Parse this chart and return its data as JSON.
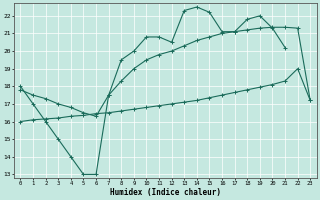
{
  "xlabel": "Humidex (Indice chaleur)",
  "bg_color": "#c5e8e0",
  "line_color": "#1a6b5a",
  "grid_color": "#ffffff",
  "xlim": [
    -0.5,
    23.5
  ],
  "ylim": [
    12.8,
    22.7
  ],
  "xticks": [
    0,
    1,
    2,
    3,
    4,
    5,
    6,
    7,
    8,
    9,
    10,
    11,
    12,
    13,
    14,
    15,
    16,
    17,
    18,
    19,
    20,
    21,
    22,
    23
  ],
  "yticks": [
    13,
    14,
    15,
    16,
    17,
    18,
    19,
    20,
    21,
    22
  ],
  "curve1_x": [
    0,
    1,
    2,
    3,
    4,
    5,
    6,
    7,
    8,
    9,
    10,
    11,
    12,
    13,
    14,
    15,
    16,
    17,
    18,
    19,
    20,
    21
  ],
  "curve1_y": [
    18.0,
    17.0,
    16.0,
    15.0,
    14.0,
    13.0,
    13.0,
    17.5,
    19.5,
    20.0,
    20.8,
    20.8,
    20.5,
    22.3,
    22.5,
    22.2,
    21.1,
    21.1,
    21.8,
    22.0,
    21.3,
    20.2
  ],
  "curve2_x": [
    0,
    1,
    2,
    3,
    4,
    5,
    6,
    7,
    8,
    9,
    10,
    11,
    12,
    13,
    14,
    15,
    16,
    17,
    18,
    19,
    20,
    21,
    22,
    23
  ],
  "curve2_y": [
    16.0,
    16.1,
    16.15,
    16.2,
    16.3,
    16.35,
    16.45,
    16.5,
    16.6,
    16.7,
    16.8,
    16.9,
    17.0,
    17.1,
    17.2,
    17.35,
    17.5,
    17.65,
    17.8,
    17.95,
    18.1,
    18.3,
    19.0,
    17.2
  ],
  "curve3_x": [
    0,
    1,
    2,
    3,
    4,
    5,
    6,
    7,
    8,
    9,
    10,
    11,
    12,
    13,
    14,
    15,
    16,
    17,
    18,
    19,
    20,
    21,
    22,
    23
  ],
  "curve3_y": [
    17.8,
    17.5,
    17.3,
    17.0,
    16.8,
    16.5,
    16.3,
    17.5,
    18.3,
    19.0,
    19.5,
    19.8,
    20.0,
    20.3,
    20.6,
    20.8,
    21.0,
    21.1,
    21.2,
    21.3,
    21.35,
    21.35,
    21.3,
    17.2
  ]
}
